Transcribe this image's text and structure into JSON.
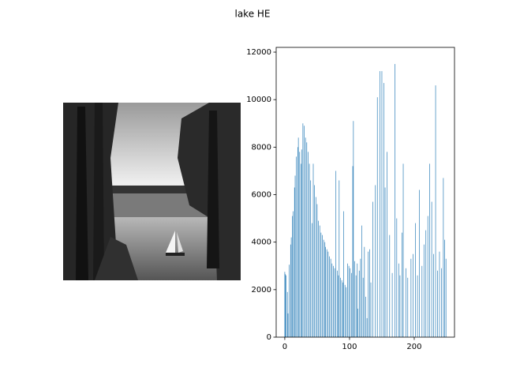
{
  "chart_data": {
    "type": "bar",
    "title": "lake HE",
    "color": "#1f77b4",
    "x": [
      0,
      1,
      2,
      4,
      5,
      7,
      9,
      10,
      12,
      13,
      15,
      16,
      18,
      20,
      21,
      23,
      25,
      26,
      28,
      30,
      32,
      34,
      36,
      38,
      40,
      42,
      44,
      46,
      48,
      50,
      52,
      54,
      56,
      58,
      60,
      62,
      63,
      65,
      67,
      69,
      71,
      73,
      75,
      77,
      79,
      81,
      83,
      84,
      86,
      88,
      90,
      91,
      93,
      95,
      97,
      99,
      101,
      103,
      105,
      106,
      108,
      110,
      112,
      113,
      115,
      117,
      119,
      121,
      123,
      125,
      127,
      129,
      131,
      133,
      136,
      140,
      143,
      147,
      150,
      153,
      155,
      158,
      162,
      166,
      170,
      173,
      176,
      178,
      181,
      183,
      187,
      190,
      195,
      198,
      202,
      205,
      208,
      212,
      215,
      218,
      221,
      224,
      227,
      230,
      233,
      236,
      239,
      242,
      245,
      247,
      249
    ],
    "values": [
      2750,
      2650,
      2600,
      1900,
      1000,
      3050,
      3900,
      4200,
      5100,
      5300,
      6300,
      6800,
      7600,
      8000,
      8400,
      7800,
      7300,
      7900,
      9000,
      8900,
      8400,
      8200,
      7800,
      7300,
      6600,
      4800,
      7300,
      6400,
      5900,
      5600,
      4900,
      4700,
      4400,
      4300,
      4100,
      4000,
      3800,
      3700,
      3600,
      3400,
      3300,
      3100,
      3000,
      2900,
      7000,
      2800,
      2600,
      6600,
      2500,
      2400,
      2300,
      5300,
      2200,
      2100,
      3100,
      3000,
      2900,
      2700,
      7200,
      9100,
      3200,
      2600,
      3100,
      1200,
      2800,
      3300,
      4700,
      2500,
      3800,
      1700,
      800,
      3600,
      3700,
      2300,
      5700,
      6400,
      10100,
      11200,
      11200,
      10700,
      6300,
      7800,
      4300,
      2700,
      11500,
      5000,
      3100,
      2600,
      4400,
      7300,
      2900,
      2500,
      3300,
      3500,
      4800,
      2600,
      6200,
      3000,
      3900,
      4500,
      5100,
      7300,
      5700,
      3500,
      10600,
      2800,
      3600,
      2900,
      6700,
      4100,
      3300
    ],
    "xlim": [
      -13.3,
      262.2
    ],
    "ylim": [
      0,
      12200
    ],
    "xticks": [
      0,
      100,
      200
    ],
    "yticks": [
      0,
      2000,
      4000,
      6000,
      8000,
      10000,
      12000
    ]
  }
}
